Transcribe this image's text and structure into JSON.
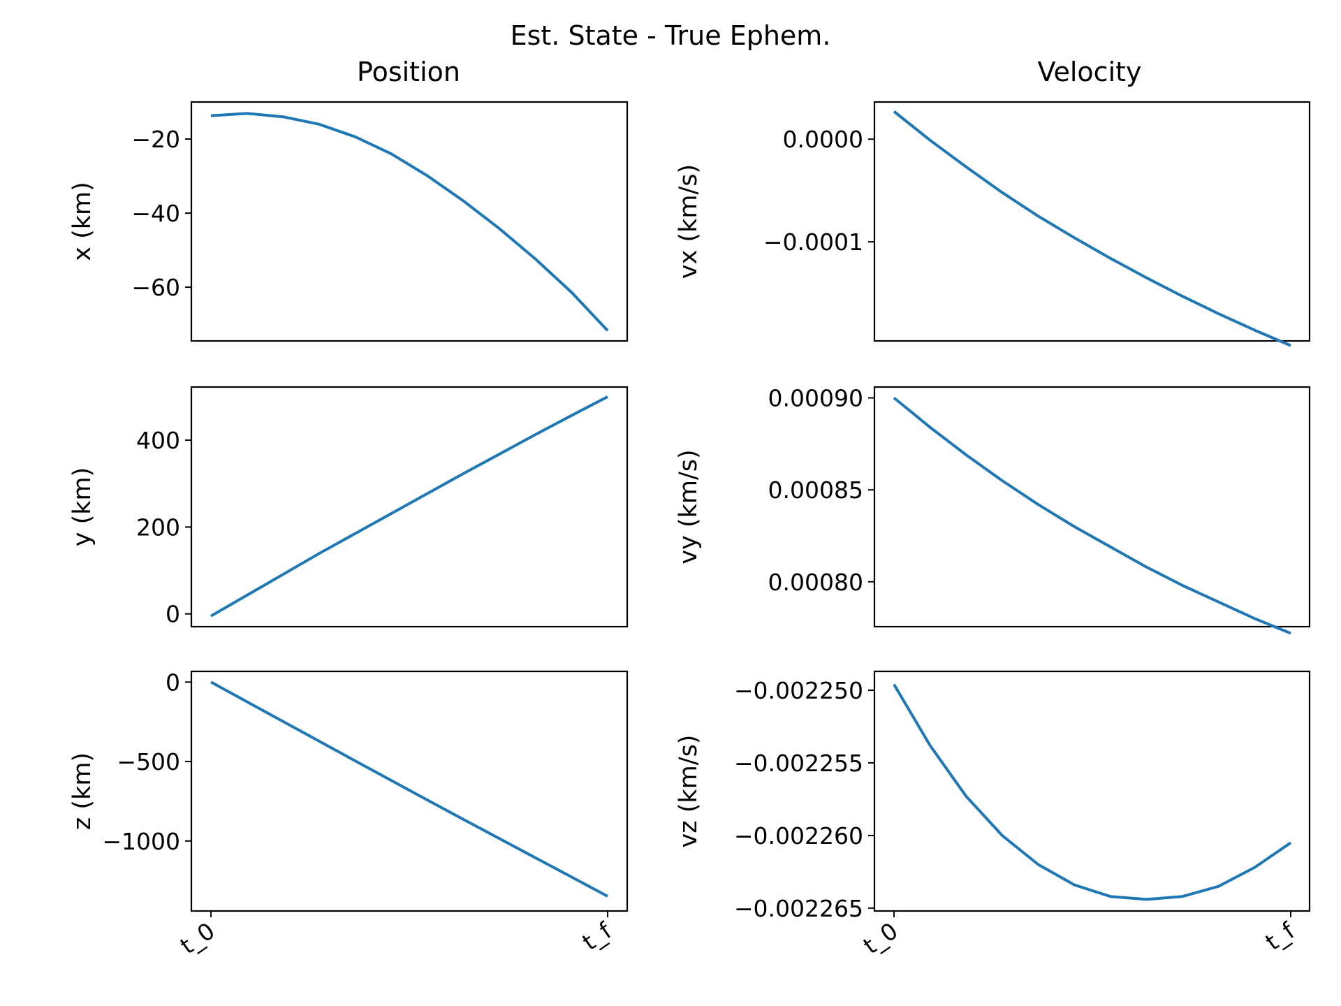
{
  "figure": {
    "suptitle": "Est. State - True Ephem.",
    "column_titles": [
      "Position",
      "Velocity"
    ],
    "line_color": "#1f77b4",
    "xtick_labels": [
      "t_0",
      "t_f"
    ]
  },
  "chart_data": [
    {
      "id": "x",
      "type": "line",
      "column": "Position",
      "ylabel": "x (km)",
      "yticks": [
        -20,
        -40,
        -60
      ],
      "ytick_labels": [
        "−20",
        "−40",
        "−60"
      ],
      "ylim": [
        -74.5,
        -10.0
      ],
      "x": [
        0,
        1,
        2,
        3,
        4,
        5,
        6,
        7,
        8,
        9,
        10,
        11
      ],
      "values": [
        -13.7,
        -13.1,
        -14.0,
        -16.0,
        -19.4,
        -24.0,
        -29.9,
        -36.7,
        -44.2,
        -52.4,
        -61.4,
        -71.7
      ]
    },
    {
      "id": "vx",
      "type": "line",
      "column": "Velocity",
      "ylabel": "vx (km/s)",
      "yticks": [
        0.0,
        -0.0001
      ],
      "ytick_labels": [
        "0.0000",
        "−0.0001"
      ],
      "ylim": [
        -0.0001965,
        3.62e-05
      ],
      "x": [
        0,
        1,
        2,
        3,
        4,
        5,
        6,
        7,
        8,
        9,
        10,
        11
      ],
      "values": [
        2.7e-05,
        -1e-06,
        -2.7e-05,
        -5.2e-05,
        -7.5e-05,
        -9.6e-05,
        -0.000116,
        -0.000135,
        -0.000153,
        -0.00017,
        -0.000186,
        -0.000201
      ]
    },
    {
      "id": "y",
      "type": "line",
      "column": "Position",
      "ylabel": "y (km)",
      "yticks": [
        0,
        200,
        400
      ],
      "ytick_labels": [
        "0",
        "200",
        "400"
      ],
      "ylim": [
        -29.4,
        522.4
      ],
      "x": [
        0,
        1,
        2,
        3,
        4,
        5,
        6,
        7,
        8,
        9,
        10,
        11
      ],
      "values": [
        -5,
        43,
        91,
        139,
        185,
        231,
        277,
        323,
        368,
        413,
        457,
        500
      ]
    },
    {
      "id": "vy",
      "type": "line",
      "column": "Velocity",
      "ylabel": "vy (km/s)",
      "yticks": [
        0.0009,
        0.00085,
        0.0008
      ],
      "ytick_labels": [
        "0.00090",
        "0.00085",
        "0.00080"
      ],
      "ylim": [
        0.0007756,
        0.0009059
      ],
      "x": [
        0,
        1,
        2,
        3,
        4,
        5,
        6,
        7,
        8,
        9,
        10,
        11
      ],
      "values": [
        0.0009,
        0.000884,
        0.000869,
        0.000855,
        0.000842,
        0.00083,
        0.000819,
        0.000808,
        0.000798,
        0.000789,
        0.00078,
        0.000772
      ]
    },
    {
      "id": "z",
      "type": "line",
      "column": "Position",
      "ylabel": "z (km)",
      "yticks": [
        0,
        -500,
        -1000
      ],
      "ytick_labels": [
        "0",
        "−500",
        "−1000"
      ],
      "ylim": [
        -1440.4,
        67.2
      ],
      "x": [
        0,
        1,
        2,
        3,
        4,
        5,
        6,
        7,
        8,
        9,
        10,
        11
      ],
      "values": [
        0,
        -124,
        -248,
        -372,
        -496,
        -619,
        -742,
        -864,
        -985,
        -1106,
        -1227,
        -1348
      ]
    },
    {
      "id": "vz",
      "type": "line",
      "column": "Velocity",
      "ylabel": "vz (km/s)",
      "yticks": [
        -0.00225,
        -0.002255,
        -0.00226,
        -0.002265
      ],
      "ytick_labels": [
        "−0.002250",
        "−0.002255",
        "−0.002260",
        "−0.002265"
      ],
      "ylim": [
        -0.0022652,
        -0.0022487
      ],
      "x": [
        0,
        1,
        2,
        3,
        4,
        5,
        6,
        7,
        8,
        9,
        10,
        11
      ],
      "values": [
        -0.0022496,
        -0.0022538,
        -0.0022573,
        -0.00226,
        -0.002262,
        -0.0022634,
        -0.0022642,
        -0.0022644,
        -0.0022642,
        -0.0022635,
        -0.0022622,
        -0.0022605
      ]
    }
  ]
}
